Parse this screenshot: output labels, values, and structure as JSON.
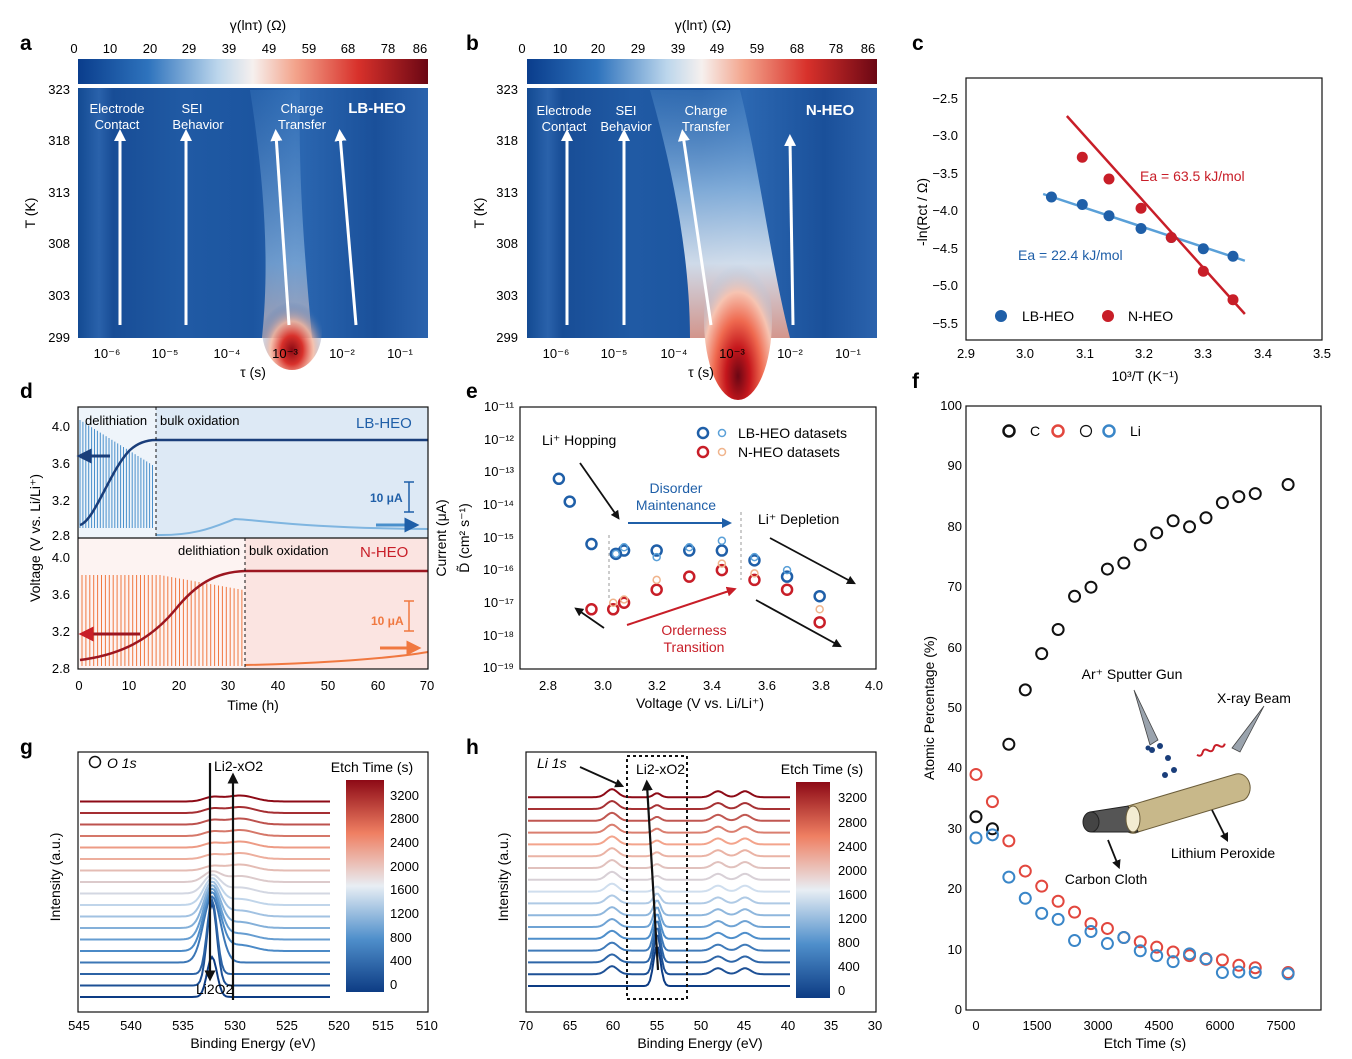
{
  "panel_labels": [
    "a",
    "b",
    "c",
    "d",
    "e",
    "f",
    "g",
    "h"
  ],
  "panel_a": {
    "colorbar_label": "γ(lnτ) (Ω)",
    "colorbar_ticks": [
      "0",
      "10",
      "20",
      "29",
      "39",
      "49",
      "59",
      "68",
      "78",
      "86"
    ],
    "y_axis_label": "T (K)",
    "y_ticks": [
      "323",
      "318",
      "313",
      "308",
      "303",
      "299"
    ],
    "x_axis_label": "τ (s)",
    "x_ticks": [
      "10⁻⁶",
      "10⁻⁵",
      "10⁻⁴",
      "10⁻³",
      "10⁻²",
      "10⁻¹"
    ],
    "tag": "LB-HEO",
    "annotations": [
      [
        "Electrode",
        "Contact"
      ],
      [
        "SEI",
        "Behavior"
      ],
      [
        "Charge",
        "Transfer"
      ]
    ]
  },
  "panel_b": {
    "colorbar_label": "γ(lnτ) (Ω)",
    "colorbar_ticks": [
      "0",
      "10",
      "20",
      "29",
      "39",
      "49",
      "59",
      "68",
      "78",
      "86"
    ],
    "y_axis_label": "T (K)",
    "y_ticks": [
      "323",
      "318",
      "313",
      "308",
      "303",
      "299"
    ],
    "x_axis_label": "τ (s)",
    "x_ticks": [
      "10⁻⁶",
      "10⁻⁵",
      "10⁻⁴",
      "10⁻³",
      "10⁻²",
      "10⁻¹"
    ],
    "tag": "N-HEO",
    "annotations": [
      [
        "Electrode",
        "Contact"
      ],
      [
        "SEI",
        "Behavior"
      ],
      [
        "Charge",
        "Transfer"
      ]
    ]
  },
  "panel_c": {
    "y_axis_label": "-ln(Rct / Ω)",
    "x_axis_label": "10³/T (K⁻¹)",
    "x_ticks": [
      "2.9",
      "3.0",
      "3.1",
      "3.2",
      "3.3",
      "3.4",
      "3.5"
    ],
    "y_ticks": [
      "−2.5",
      "−3.0",
      "−3.5",
      "−4.0",
      "−4.5",
      "−5.0",
      "−5.5"
    ],
    "ea_labels": [
      "Ea = 63.5 kJ/mol",
      "Ea = 22.4 kJ/mol"
    ],
    "legend": [
      "LB-HEO",
      "N-HEO"
    ]
  },
  "panel_d": {
    "y_axis_label": "Voltage (V vs. Li/Li⁺)",
    "right_axis_label": "Current (μA)",
    "x_axis_label": "Time (h)",
    "x_ticks": [
      "0",
      "10",
      "20",
      "30",
      "40",
      "50",
      "60",
      "70"
    ],
    "y_ticks_top": [
      "4.0",
      "3.6",
      "3.2",
      "2.8"
    ],
    "y_ticks_bottom": [
      "4.0",
      "3.6",
      "3.2",
      "2.8"
    ],
    "top_label": "LB-HEO",
    "bottom_label": "N-HEO",
    "phase_labels": [
      "delithiation",
      "bulk oxidation"
    ],
    "scale_label": "10 μA"
  },
  "panel_e": {
    "y_axis_label": "D̃ (cm² s⁻¹)",
    "x_axis_label": "Voltage (V vs. Li/Li⁺)",
    "x_ticks": [
      "2.8",
      "3.0",
      "3.2",
      "3.4",
      "3.6",
      "3.8",
      "4.0"
    ],
    "y_ticks": [
      "10⁻¹¹",
      "10⁻¹²",
      "10⁻¹³",
      "10⁻¹⁴",
      "10⁻¹⁵",
      "10⁻¹⁶",
      "10⁻¹⁷",
      "10⁻¹⁸",
      "10⁻¹⁹"
    ],
    "legend": [
      "LB-HEO datasets",
      "N-HEO datasets"
    ],
    "annotations": [
      "Li⁺ Hopping",
      "Disorder",
      "Maintenance",
      "Li⁺ Depletion",
      "Orderness",
      "Transition"
    ]
  },
  "panel_f": {
    "y_axis_label": "Atomic Percentage (%)",
    "x_axis_label": "Etch Time (s)",
    "x_ticks": [
      "0",
      "1500",
      "3000",
      "4500",
      "6000",
      "7500"
    ],
    "y_ticks": [
      "0",
      "10",
      "20",
      "30",
      "40",
      "50",
      "60",
      "70",
      "80",
      "90",
      "100"
    ],
    "legend": [
      "C",
      "O",
      "Li"
    ],
    "schematic_labels": [
      "Ar⁺ Sputter Gun",
      "X-ray Beam",
      "Lithium Peroxide",
      "Carbon Cloth"
    ]
  },
  "panel_g": {
    "tag": "O 1s",
    "peak_labels": [
      "Li2-xO2",
      "Li2O2"
    ],
    "colorbar_title": "Etch Time (s)",
    "colorbar_ticks": [
      "3200",
      "2800",
      "2400",
      "2000",
      "1600",
      "1200",
      "800",
      "400",
      "0"
    ],
    "y_axis_label": "Intensity (a.u.)",
    "x_axis_label": "Binding Energy (eV)",
    "x_ticks": [
      "545",
      "540",
      "535",
      "530",
      "525",
      "520",
      "515",
      "510"
    ]
  },
  "panel_h": {
    "tag": "Li 1s",
    "peak_labels": [
      "Li2-xO2"
    ],
    "colorbar_title": "Etch Time (s)",
    "colorbar_ticks": [
      "3200",
      "2800",
      "2400",
      "2000",
      "1600",
      "1200",
      "800",
      "400",
      "0"
    ],
    "y_axis_label": "Intensity (a.u.)",
    "x_axis_label": "Binding Energy (eV)",
    "x_ticks": [
      "70",
      "65",
      "60",
      "55",
      "50",
      "45",
      "40",
      "35",
      "30"
    ]
  },
  "colors": {
    "lb": "#1f5fa8",
    "nheo": "#c81e28",
    "lb_light": "#5aa0d8",
    "n_light": "#f0b48c"
  },
  "chart_data": [
    {
      "panel": "c",
      "type": "scatter",
      "xlabel": "10³/T (K⁻¹)",
      "ylabel": "-ln(Rct / Ω)",
      "xlim": [
        2.9,
        3.5
      ],
      "ylim": [
        -5.7,
        -2.3
      ],
      "series": [
        {
          "name": "LB-HEO",
          "x": [
            3.044,
            3.096,
            3.141,
            3.195,
            3.246,
            3.3,
            3.35
          ],
          "y": [
            -3.82,
            -3.92,
            -4.07,
            -4.24,
            -4.36,
            -4.51,
            -4.61
          ],
          "fit": [
            [
              3.03,
              -3.78
            ],
            [
              3.37,
              -4.67
            ]
          ]
        },
        {
          "name": "N-HEO",
          "x": [
            3.096,
            3.141,
            3.195,
            3.246,
            3.3,
            3.35
          ],
          "y": [
            -3.29,
            -3.58,
            -3.97,
            -4.36,
            -4.81,
            -5.19
          ],
          "fit": [
            [
              3.07,
              -2.74
            ],
            [
              3.37,
              -5.38
            ]
          ]
        }
      ]
    },
    {
      "panel": "e",
      "type": "scatter",
      "xlabel": "Voltage (V vs. Li/Li⁺)",
      "ylabel": "log10 D̃ (cm² s⁻¹)",
      "xlim": [
        2.7,
        4.0
      ],
      "ylim": [
        -19,
        -11
      ],
      "series": [
        {
          "name": "LB-HEO datasets",
          "x": [
            2.84,
            2.88,
            2.96,
            3.05,
            3.08,
            3.2,
            3.32,
            3.44,
            3.56,
            3.68,
            3.8
          ],
          "y": [
            -13.2,
            -13.9,
            -15.2,
            -15.5,
            -15.4,
            -15.4,
            -15.4,
            -15.4,
            -15.7,
            -16.2,
            -16.8
          ]
        },
        {
          "name": "LB-HEO datasets (rep.)",
          "x": [
            3.05,
            3.08,
            3.2,
            3.32,
            3.44,
            3.56,
            3.68
          ],
          "y": [
            -15.5,
            -15.3,
            -15.6,
            -15.3,
            -15.1,
            -15.6,
            -16.0
          ]
        },
        {
          "name": "N-HEO datasets",
          "x": [
            2.96,
            3.04,
            3.08,
            3.2,
            3.32,
            3.44,
            3.56,
            3.68,
            3.8
          ],
          "y": [
            -17.2,
            -17.2,
            -17.0,
            -16.6,
            -16.2,
            -16.0,
            -16.3,
            -16.6,
            -17.6
          ]
        },
        {
          "name": "N-HEO datasets (rep.)",
          "x": [
            3.04,
            3.08,
            3.2,
            3.44,
            3.56,
            3.8
          ],
          "y": [
            -17.0,
            -16.9,
            -16.3,
            -15.8,
            -16.1,
            -17.2
          ]
        }
      ]
    },
    {
      "panel": "f",
      "type": "scatter",
      "xlabel": "Etch Time (s)",
      "ylabel": "Atomic Percentage (%)",
      "xlim": [
        -150,
        8300
      ],
      "ylim": [
        0,
        100
      ],
      "series": [
        {
          "name": "C",
          "x": [
            0,
            400,
            800,
            1200,
            1600,
            2000,
            2400,
            2800,
            3200,
            3600,
            4000,
            4400,
            4800,
            5200,
            5600,
            6000,
            6400,
            6800,
            7600
          ],
          "y": [
            32,
            30,
            44,
            53,
            59,
            63,
            68.5,
            70,
            73,
            74,
            77,
            79,
            81,
            80,
            81.5,
            84,
            85,
            85.5,
            87
          ]
        },
        {
          "name": "O",
          "x": [
            0,
            400,
            800,
            1200,
            1600,
            2000,
            2400,
            2800,
            3200,
            3600,
            4000,
            4400,
            4800,
            5200,
            5600,
            6000,
            6400,
            6800,
            7600
          ],
          "y": [
            39,
            34.5,
            28,
            23,
            20.5,
            18,
            16.2,
            14.3,
            13.5,
            12,
            11.3,
            10.4,
            9.6,
            9,
            8.4,
            8.3,
            7.4,
            7,
            6.2
          ]
        },
        {
          "name": "Li",
          "x": [
            0,
            400,
            800,
            1200,
            1600,
            2000,
            2400,
            2800,
            3200,
            3600,
            4000,
            4400,
            4800,
            5200,
            5600,
            6000,
            6400,
            6800,
            7600
          ],
          "y": [
            28.5,
            29,
            22,
            18.5,
            16,
            15,
            11.5,
            13,
            11,
            12,
            9.8,
            9,
            8,
            9.3,
            8.5,
            6.2,
            6.3,
            6.2,
            6
          ]
        }
      ]
    }
  ]
}
